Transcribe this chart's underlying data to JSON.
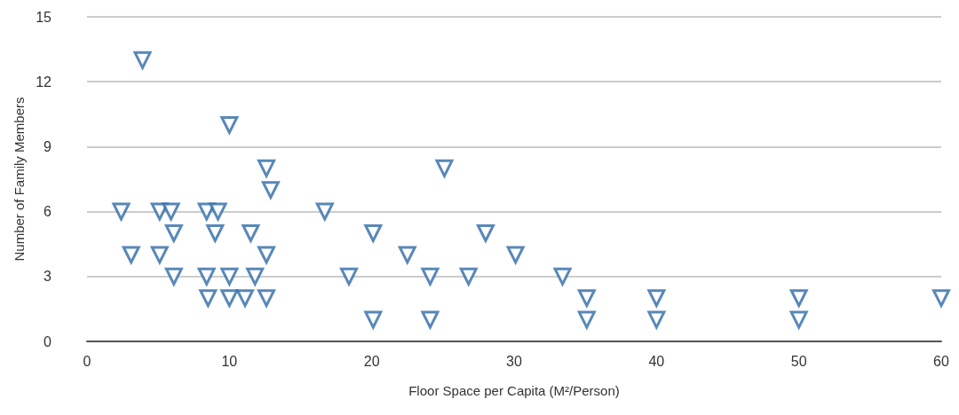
{
  "chart_data": {
    "type": "scatter",
    "xlabel": "Floor Space per Capita (M²/Person)",
    "ylabel": "Number of Family Members",
    "x": [
      3.9,
      2.4,
      3.1,
      5.1,
      5.9,
      5.1,
      6.1,
      6.1,
      8.4,
      9.2,
      9,
      8.4,
      8.5,
      10,
      10,
      10,
      11.1,
      11.5,
      11.8,
      12.6,
      12.9,
      12.6,
      12.6,
      16.7,
      18.4,
      20.1,
      20.1,
      22.5,
      24.1,
      24.1,
      25.1,
      26.8,
      28,
      30.1,
      33.4,
      35.1,
      35.1,
      40,
      40,
      50,
      50,
      60
    ],
    "values": [
      13,
      6,
      4,
      6,
      6,
      4,
      5,
      3,
      6,
      6,
      5,
      3,
      2,
      10,
      3,
      2,
      2,
      5,
      3,
      8,
      7,
      4,
      2,
      6,
      3,
      5,
      1,
      4,
      3,
      1,
      8,
      3,
      5,
      4,
      3,
      2,
      1,
      2,
      1,
      2,
      1,
      2
    ],
    "color": "#2e6aa6",
    "marker": "triangle",
    "grid": "y",
    "xlim": [
      0,
      60
    ],
    "xticks": [
      0,
      10,
      20,
      30,
      40,
      50,
      60
    ],
    "ylim": [
      0,
      15
    ],
    "yticks": [
      0,
      3,
      6,
      9,
      12,
      15
    ]
  }
}
